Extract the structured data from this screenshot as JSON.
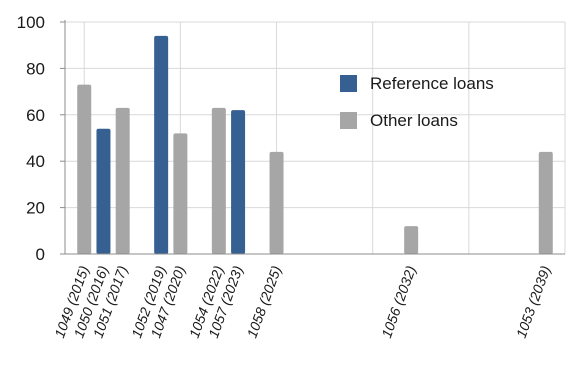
{
  "chart_data": {
    "type": "bar",
    "title": "",
    "xlabel": "",
    "ylabel": "",
    "ylim": [
      0,
      100
    ],
    "yticks": [
      0,
      20,
      40,
      60,
      80,
      100
    ],
    "grid": true,
    "legend_position": "right",
    "colors": {
      "Reference loans": "#376092",
      "Other loans": "#a6a6a6",
      "grid": "#d9d9d9",
      "axis": "#8c8c8c"
    },
    "x_axis": {
      "min_year": 2014,
      "max_year": 2040,
      "year_ticks": [
        2015,
        2020,
        2025,
        2030,
        2035,
        2040
      ]
    },
    "categories": [
      {
        "label": "1049 (2015)",
        "year": 2015
      },
      {
        "label": "1050 (2016)",
        "year": 2016
      },
      {
        "label": "1051 (2017)",
        "year": 2017
      },
      {
        "label": "1052 (2019)",
        "year": 2019
      },
      {
        "label": "1047 (2020)",
        "year": 2020
      },
      {
        "label": "1054 (2022)",
        "year": 2022
      },
      {
        "label": "1057 (2023)",
        "year": 2023
      },
      {
        "label": "1058 (2025)",
        "year": 2025
      },
      {
        "label": "1056 (2032)",
        "year": 2032
      },
      {
        "label": "1053 (2039)",
        "year": 2039
      }
    ],
    "series": [
      {
        "name": "Reference loans",
        "points": [
          {
            "year": 2016,
            "value": 54
          },
          {
            "year": 2019,
            "value": 94
          },
          {
            "year": 2023,
            "value": 62
          }
        ]
      },
      {
        "name": "Other loans",
        "points": [
          {
            "year": 2015,
            "value": 73
          },
          {
            "year": 2017,
            "value": 63
          },
          {
            "year": 2020,
            "value": 52
          },
          {
            "year": 2022,
            "value": 63
          },
          {
            "year": 2025,
            "value": 44
          },
          {
            "year": 2032,
            "value": 12
          },
          {
            "year": 2039,
            "value": 44
          }
        ]
      }
    ]
  }
}
